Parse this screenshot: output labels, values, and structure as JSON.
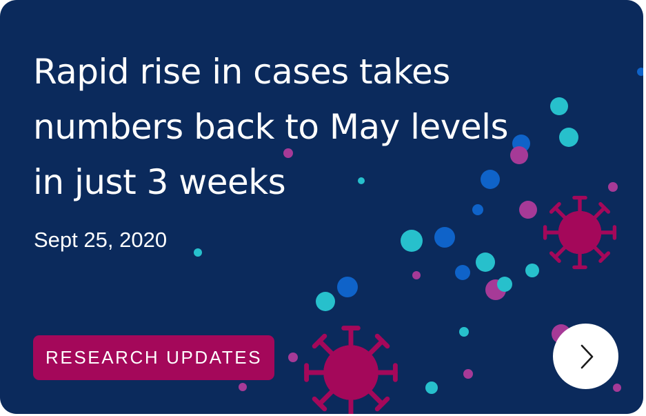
{
  "card": {
    "headline": "Rapid rise in cases takes numbers back to May levels in just 3 weeks",
    "date": "Sept 25, 2020",
    "category_badge": "RESEARCH UPDATES",
    "next_icon": "chevron-right-icon"
  },
  "colors": {
    "background": "#0b2a5c",
    "badge": "#a4085a",
    "virus": "#a4085a",
    "dot_cyan": "#27c0cc",
    "dot_blue": "#0f63c9",
    "dot_magenta": "#a63a97"
  }
}
